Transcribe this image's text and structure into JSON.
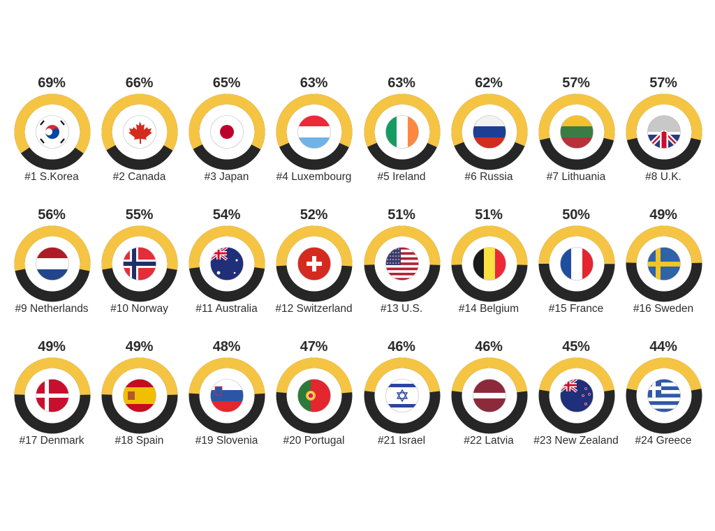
{
  "chart_data": {
    "type": "donut-grid",
    "title": "",
    "unit": "%",
    "colors": {
      "filled": "#F5C443",
      "remaining": "#262626",
      "text": "#2b2b2b"
    },
    "categories": [
      "S.Korea",
      "Canada",
      "Japan",
      "Luxembourg",
      "Ireland",
      "Russia",
      "Lithuania",
      "U.K.",
      "Netherlands",
      "Norway",
      "Australia",
      "Switzerland",
      "U.S.",
      "Belgium",
      "France",
      "Sweden",
      "Denmark",
      "Spain",
      "Slovenia",
      "Portugal",
      "Israel",
      "Latvia",
      "New Zealand",
      "Greece"
    ],
    "values": [
      69,
      66,
      65,
      63,
      63,
      62,
      57,
      57,
      56,
      55,
      54,
      52,
      51,
      51,
      50,
      49,
      49,
      49,
      48,
      47,
      46,
      46,
      45,
      44
    ],
    "layout": {
      "rows": 3,
      "columns": 8
    }
  },
  "items": [
    {
      "rank": "#1",
      "country": "S.Korea",
      "label": "#1 S.Korea",
      "value": 69,
      "pct": "69%",
      "flag": "kr"
    },
    {
      "rank": "#2",
      "country": "Canada",
      "label": "#2 Canada",
      "value": 66,
      "pct": "66%",
      "flag": "ca"
    },
    {
      "rank": "#3",
      "country": "Japan",
      "label": "#3 Japan",
      "value": 65,
      "pct": "65%",
      "flag": "jp"
    },
    {
      "rank": "#4",
      "country": "Luxembourg",
      "label": "#4 Luxembourg",
      "value": 63,
      "pct": "63%",
      "flag": "lu"
    },
    {
      "rank": "#5",
      "country": "Ireland",
      "label": "#5 Ireland",
      "value": 63,
      "pct": "63%",
      "flag": "ie"
    },
    {
      "rank": "#6",
      "country": "Russia",
      "label": "#6 Russia",
      "value": 62,
      "pct": "62%",
      "flag": "ru"
    },
    {
      "rank": "#7",
      "country": "Lithuania",
      "label": "#7 Lithuania",
      "value": 57,
      "pct": "57%",
      "flag": "lt"
    },
    {
      "rank": "#8",
      "country": "U.K.",
      "label": "#8 U.K.",
      "value": 57,
      "pct": "57%",
      "flag": "gb"
    },
    {
      "rank": "#9",
      "country": "Netherlands",
      "label": "#9 Netherlands",
      "value": 56,
      "pct": "56%",
      "flag": "nl"
    },
    {
      "rank": "#10",
      "country": "Norway",
      "label": "#10 Norway",
      "value": 55,
      "pct": "55%",
      "flag": "no"
    },
    {
      "rank": "#11",
      "country": "Australia",
      "label": "#11 Australia",
      "value": 54,
      "pct": "54%",
      "flag": "au"
    },
    {
      "rank": "#12",
      "country": "Switzerland",
      "label": "#12 Switzerland",
      "value": 52,
      "pct": "52%",
      "flag": "ch"
    },
    {
      "rank": "#13",
      "country": "U.S.",
      "label": "#13 U.S.",
      "value": 51,
      "pct": "51%",
      "flag": "us"
    },
    {
      "rank": "#14",
      "country": "Belgium",
      "label": "#14 Belgium",
      "value": 51,
      "pct": "51%",
      "flag": "be"
    },
    {
      "rank": "#15",
      "country": "France",
      "label": "#15 France",
      "value": 50,
      "pct": "50%",
      "flag": "fr"
    },
    {
      "rank": "#16",
      "country": "Sweden",
      "label": "#16 Sweden",
      "value": 49,
      "pct": "49%",
      "flag": "se"
    },
    {
      "rank": "#17",
      "country": "Denmark",
      "label": "#17 Denmark",
      "value": 49,
      "pct": "49%",
      "flag": "dk"
    },
    {
      "rank": "#18",
      "country": "Spain",
      "label": "#18 Spain",
      "value": 49,
      "pct": "49%",
      "flag": "es"
    },
    {
      "rank": "#19",
      "country": "Slovenia",
      "label": "#19 Slovenia",
      "value": 48,
      "pct": "48%",
      "flag": "si"
    },
    {
      "rank": "#20",
      "country": "Portugal",
      "label": "#20 Portugal",
      "value": 47,
      "pct": "47%",
      "flag": "pt"
    },
    {
      "rank": "#21",
      "country": "Israel",
      "label": "#21 Israel",
      "value": 46,
      "pct": "46%",
      "flag": "il"
    },
    {
      "rank": "#22",
      "country": "Latvia",
      "label": "#22 Latvia",
      "value": 46,
      "pct": "46%",
      "flag": "lv"
    },
    {
      "rank": "#23",
      "country": "New Zealand",
      "label": "#23 New Zealand",
      "value": 45,
      "pct": "45%",
      "flag": "nz"
    },
    {
      "rank": "#24",
      "country": "Greece",
      "label": "#24 Greece",
      "value": 44,
      "pct": "44%",
      "flag": "gr"
    }
  ],
  "icons": {
    "kr": "south-korea-flag-icon",
    "ca": "canada-flag-icon",
    "jp": "japan-flag-icon",
    "lu": "luxembourg-flag-icon",
    "ie": "ireland-flag-icon",
    "ru": "russia-flag-icon",
    "lt": "lithuania-flag-icon",
    "gb": "uk-flag-icon",
    "nl": "netherlands-flag-icon",
    "no": "norway-flag-icon",
    "au": "australia-flag-icon",
    "ch": "switzerland-flag-icon",
    "us": "us-flag-icon",
    "be": "belgium-flag-icon",
    "fr": "france-flag-icon",
    "se": "sweden-flag-icon",
    "dk": "denmark-flag-icon",
    "es": "spain-flag-icon",
    "si": "slovenia-flag-icon",
    "pt": "portugal-flag-icon",
    "il": "israel-flag-icon",
    "lv": "latvia-flag-icon",
    "nz": "new-zealand-flag-icon",
    "gr": "greece-flag-icon"
  }
}
